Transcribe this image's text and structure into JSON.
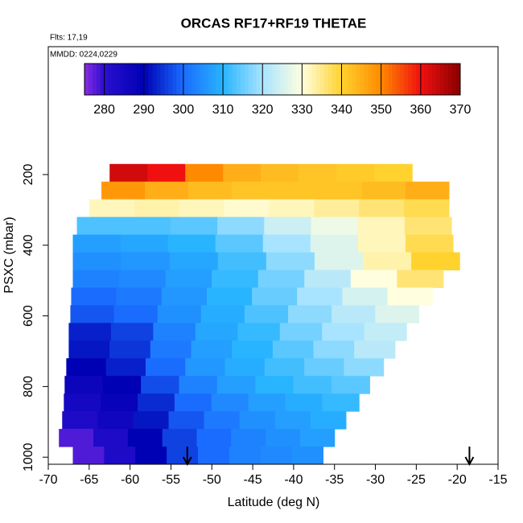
{
  "chart_data": {
    "type": "heatmap",
    "title": "ORCAS RF17+RF19 THETAE",
    "subtitle": "Flts: 17,19",
    "annotation": "MMDD: 0224,0229",
    "xlabel": "Latitude (deg N)",
    "ylabel": "PSXC (mbar)",
    "xlim": [
      -70,
      -15
    ],
    "xticks": [
      -70,
      -65,
      -60,
      -55,
      -50,
      -45,
      -40,
      -35,
      -30,
      -25,
      -20,
      -15
    ],
    "ylim": [
      1020,
      -162
    ],
    "yticks": [
      200,
      400,
      600,
      800,
      1000
    ],
    "colorbar_lim": [
      275,
      370
    ],
    "colorbar_ticks": [
      280,
      290,
      300,
      310,
      320,
      330,
      340,
      350,
      360,
      370
    ],
    "colorscale": [
      [
        275,
        "#8a2be2"
      ],
      [
        280,
        "#2a10d0"
      ],
      [
        290,
        "#0000b4"
      ],
      [
        300,
        "#1a6cff"
      ],
      [
        310,
        "#28b4ff"
      ],
      [
        320,
        "#a8e4ff"
      ],
      [
        330,
        "#ffffe0"
      ],
      [
        340,
        "#ffd22e"
      ],
      [
        350,
        "#ff8a00"
      ],
      [
        360,
        "#f01010"
      ],
      [
        370,
        "#8a0000"
      ]
    ],
    "arrows_lat": [
      -53,
      -18.5
    ],
    "rows": [
      {
        "p": [
          170,
          220
        ],
        "lat": [
          -62.5,
          -25.5
        ],
        "values": [
          363,
          360,
          350,
          345,
          343,
          342,
          341,
          340
        ]
      },
      {
        "p": [
          220,
          270
        ],
        "lat": [
          -63.5,
          -21
        ],
        "values": [
          348,
          345,
          343,
          342,
          342,
          342,
          343,
          345
        ]
      },
      {
        "p": [
          270,
          320
        ],
        "lat": [
          -65,
          -21
        ],
        "values": [
          332,
          333,
          332,
          331,
          332,
          334,
          336,
          338
        ]
      },
      {
        "p": [
          320,
          370
        ],
        "lat": [
          -66.5,
          -20.7
        ],
        "values": [
          313,
          313,
          314,
          318,
          324,
          328,
          332,
          336
        ]
      },
      {
        "p": [
          370,
          420
        ],
        "lat": [
          -67,
          -20.5
        ],
        "values": [
          307,
          308,
          310,
          314,
          320,
          326,
          332,
          338
        ]
      },
      {
        "p": [
          420,
          470
        ],
        "lat": [
          -67,
          -19.7
        ],
        "values": [
          305,
          306,
          308,
          312,
          318,
          326,
          333,
          340
        ]
      },
      {
        "p": [
          470,
          520
        ],
        "lat": [
          -67,
          -21.7
        ],
        "values": [
          303,
          304,
          307,
          311,
          316,
          322,
          330,
          336
        ]
      },
      {
        "p": [
          520,
          570
        ],
        "lat": [
          -67.2,
          -23
        ],
        "values": [
          300,
          302,
          306,
          310,
          315,
          320,
          325,
          330
        ]
      },
      {
        "p": [
          570,
          620
        ],
        "lat": [
          -67.3,
          -24.7
        ],
        "values": [
          298,
          300,
          305,
          309,
          313,
          318,
          322,
          326
        ]
      },
      {
        "p": [
          620,
          670
        ],
        "lat": [
          -67.5,
          -26.2
        ],
        "values": [
          293,
          296,
          303,
          308,
          311,
          316,
          320,
          323
        ]
      },
      {
        "p": [
          670,
          720
        ],
        "lat": [
          -67.5,
          -27.6
        ],
        "values": [
          292,
          295,
          302,
          307,
          310,
          314,
          318,
          322
        ]
      },
      {
        "p": [
          720,
          770
        ],
        "lat": [
          -67.8,
          -29
        ],
        "values": [
          290,
          293,
          300,
          306,
          309,
          312,
          315,
          318
        ]
      },
      {
        "p": [
          770,
          820
        ],
        "lat": [
          -68,
          -30.7
        ],
        "values": [
          287,
          290,
          297,
          303,
          307,
          310,
          312,
          314
        ]
      },
      {
        "p": [
          820,
          870
        ],
        "lat": [
          -68.1,
          -32
        ],
        "values": [
          285,
          288,
          294,
          300,
          304,
          307,
          309,
          311
        ]
      },
      {
        "p": [
          870,
          920
        ],
        "lat": [
          -68.3,
          -33.6
        ],
        "values": [
          283,
          286,
          292,
          298,
          302,
          305,
          307,
          309
        ]
      },
      {
        "p": [
          920,
          970
        ],
        "lat": [
          -68.7,
          -35
        ],
        "values": [
          278,
          283,
          290,
          296,
          300,
          303,
          305,
          307
        ]
      },
      {
        "p": [
          970,
          1020
        ],
        "lat": [
          -67,
          -36.4
        ],
        "values": [
          278,
          283,
          290,
          296,
          300,
          303,
          304,
          305
        ]
      }
    ]
  }
}
